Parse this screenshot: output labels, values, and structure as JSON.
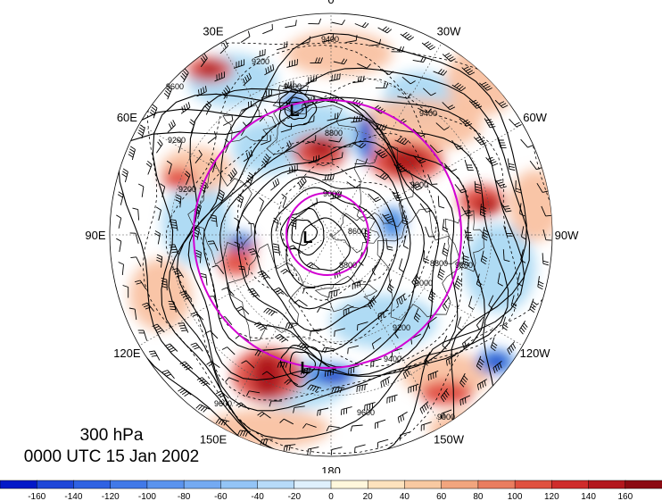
{
  "map": {
    "projection": "north-polar-stereographic",
    "longitude_labels": [
      {
        "text": "0",
        "lon": 0
      },
      {
        "text": "30W",
        "lon": -30
      },
      {
        "text": "60W",
        "lon": -60
      },
      {
        "text": "90W",
        "lon": -90
      },
      {
        "text": "120W",
        "lon": -120
      },
      {
        "text": "150W",
        "lon": -150
      },
      {
        "text": "180",
        "lon": 180
      },
      {
        "text": "150E",
        "lon": 150
      },
      {
        "text": "120E",
        "lon": 120
      },
      {
        "text": "90E",
        "lon": 90
      },
      {
        "text": "60E",
        "lon": 60
      },
      {
        "text": "30E",
        "lon": 30
      }
    ],
    "contour_labels": [
      "9400",
      "9200",
      "9600",
      "9200",
      "9400",
      "9200",
      "8800",
      "9000",
      "8800",
      "8600",
      "8800",
      "9000",
      "9200",
      "9400",
      "9600",
      "9400",
      "9200",
      "9000",
      "9600",
      "9000"
    ],
    "low_markers": [
      "L",
      "L",
      "L"
    ],
    "colors": {
      "land_ocean_bg": "#ffffff",
      "strong_positive": "#a80f16",
      "positive": "#e0453b",
      "weak_positive": "#f8bf9d",
      "weak_negative": "#a6d7f3",
      "negative": "#3a83e0",
      "strong_negative": "#0a21c4",
      "circle": "#d200d2"
    }
  },
  "caption": {
    "level": "300 hPa",
    "time": "0000 UTC 15 Jan 2002"
  },
  "colorbar": {
    "tick_labels": [
      "-160",
      "-140",
      "-120",
      "-100",
      "-80",
      "-60",
      "-40",
      "-20",
      "0",
      "20",
      "40",
      "60",
      "80",
      "100",
      "120",
      "140",
      "160"
    ],
    "colors": [
      "#0319c8",
      "#1f47d8",
      "#2f62e3",
      "#4179e8",
      "#5a93ee",
      "#74aaf2",
      "#93c4f6",
      "#b7dbf9",
      "#dff0fc",
      "#fff7dc",
      "#fde2bd",
      "#f8c9a1",
      "#f2a57e",
      "#ea7d5f",
      "#e0513f",
      "#cf2c2b",
      "#b3171d",
      "#8c0a12"
    ]
  }
}
